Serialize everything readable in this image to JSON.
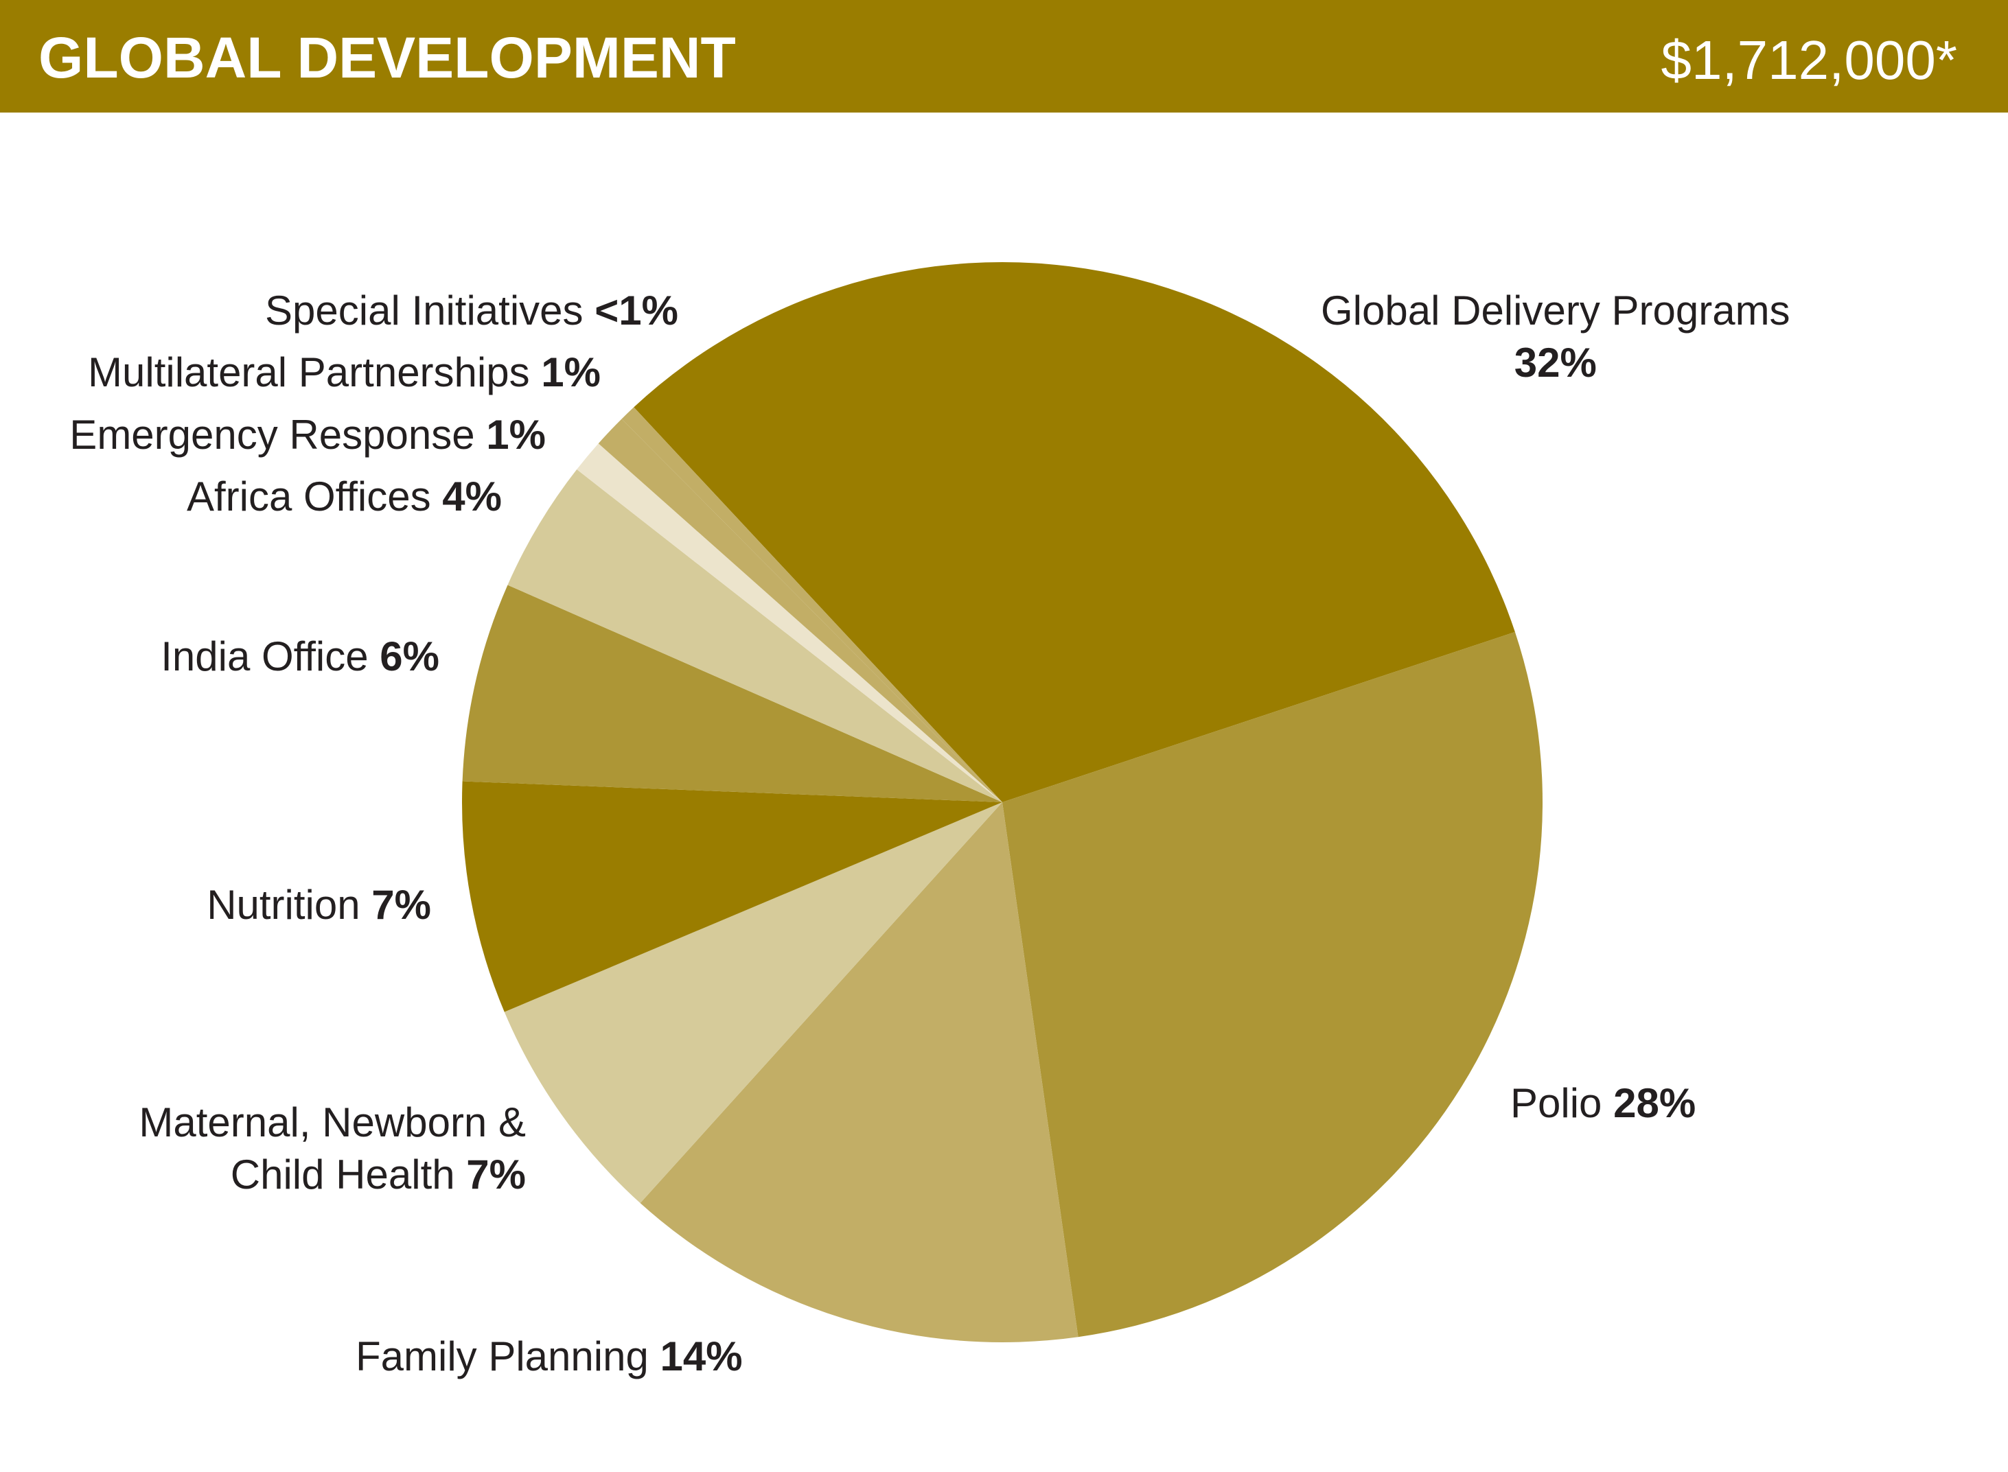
{
  "chart_data": {
    "type": "pie",
    "title": "GLOBAL DEVELOPMENT",
    "subtitle": "$1,712,000*",
    "categories": [
      "Global Delivery Programs",
      "Polio",
      "Family Planning",
      "Maternal, Newborn & Child Health",
      "Nutrition",
      "India Office",
      "Africa Offices",
      "Emergency Response",
      "Multilateral Partnerships",
      "Special Initiatives"
    ],
    "values": [
      32,
      28,
      14,
      7,
      7,
      6,
      4,
      1,
      1,
      0.5
    ],
    "value_labels": [
      "32%",
      "28%",
      "14%",
      "7%",
      "7%",
      "6%",
      "4%",
      "1%",
      "1%",
      "<1%"
    ],
    "colors": [
      "#9a7d00",
      "#ad9636",
      "#c2ae66",
      "#d6cb9a",
      "#9a7d00",
      "#ad9636",
      "#d6cb9a",
      "#ece4cc",
      "#c2ae66",
      "#c2ae66"
    ]
  }
}
